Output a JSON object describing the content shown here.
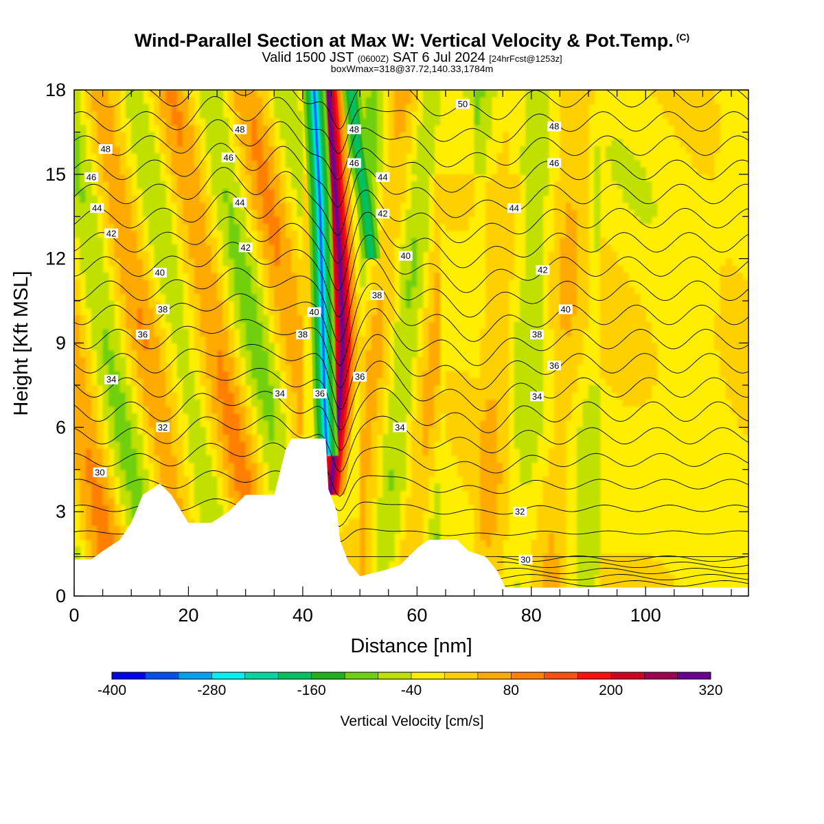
{
  "title": {
    "main": "Wind-Parallel Section at Max W: Vertical Velocity & Pot.Temp.",
    "copyright": "(C)",
    "valid_prefix": "Valid 1500 JST",
    "valid_utc": "(0600Z)",
    "valid_date": "SAT 6 Jul 2024",
    "forecast": "[24hrFcst@1253z]",
    "boxw": "boxWmax=318@37.72,140.33,1784m"
  },
  "chart_data": {
    "type": "heatmap",
    "title": "Wind-Parallel Section at Max W: Vertical Velocity & Pot.Temp.",
    "xlabel": "Distance [nm]",
    "ylabel": "Height [Kft MSL]",
    "xlim": [
      0,
      118
    ],
    "ylim": [
      0,
      18
    ],
    "x_ticks": [
      "0",
      "20",
      "40",
      "60",
      "80",
      "100"
    ],
    "y_ticks": [
      "0",
      "3",
      "6",
      "9",
      "12",
      "15",
      "18"
    ],
    "x_tick_values": [
      0,
      20,
      40,
      60,
      80,
      100
    ],
    "y_tick_values": [
      0,
      3,
      6,
      9,
      12,
      15,
      18
    ],
    "colorbar": {
      "label": "Vertical Velocity [cm/s]",
      "tick_labels": [
        "-400",
        "-280",
        "-160",
        "-40",
        "80",
        "200",
        "320"
      ],
      "tick_values": [
        -400,
        -280,
        -160,
        -40,
        80,
        200,
        320
      ],
      "bounds": [
        -400,
        320
      ],
      "colors": [
        "#0000ee",
        "#0050f0",
        "#00a0f0",
        "#00f0f0",
        "#00d8a0",
        "#00c060",
        "#20b020",
        "#70d010",
        "#c0e000",
        "#ffee00",
        "#ffd000",
        "#ffaa00",
        "#ff8000",
        "#ff5010",
        "#ff1010",
        "#d00020",
        "#a00050",
        "#6a0090"
      ]
    },
    "terrain_kft": [
      [
        0,
        1.3
      ],
      [
        3,
        1.3
      ],
      [
        5,
        1.6
      ],
      [
        8,
        2.0
      ],
      [
        10,
        2.6
      ],
      [
        12,
        3.6
      ],
      [
        15,
        4.0
      ],
      [
        17,
        3.6
      ],
      [
        20,
        2.6
      ],
      [
        24,
        2.6
      ],
      [
        27,
        3.0
      ],
      [
        30,
        3.6
      ],
      [
        35,
        3.6
      ],
      [
        37,
        5.2
      ],
      [
        38,
        5.6
      ],
      [
        44,
        5.6
      ],
      [
        44.5,
        3.8
      ],
      [
        46,
        3.0
      ],
      [
        46.5,
        2.0
      ],
      [
        48,
        1.2
      ],
      [
        50,
        0.7
      ],
      [
        54,
        0.9
      ],
      [
        57,
        1.1
      ],
      [
        60,
        1.7
      ],
      [
        62,
        2.0
      ],
      [
        67,
        2.0
      ],
      [
        69,
        1.6
      ],
      [
        72,
        1.4
      ],
      [
        74,
        0.9
      ],
      [
        75.5,
        0.3
      ],
      [
        118,
        0.3
      ]
    ],
    "updraft_core": [
      [
        44.5,
        18
      ],
      [
        45.5,
        15
      ],
      [
        46.5,
        12
      ],
      [
        47,
        9
      ],
      [
        46.5,
        7
      ],
      [
        45.5,
        5
      ],
      [
        44.8,
        3.6
      ]
    ],
    "downdraft_core": [
      [
        42,
        18
      ],
      [
        43,
        14
      ],
      [
        43.5,
        10
      ],
      [
        43.8,
        7
      ],
      [
        44.2,
        5
      ]
    ],
    "isentrope_labels": [
      {
        "text": "50",
        "x": 68,
        "y": 17.5
      },
      {
        "text": "48",
        "x": 5.5,
        "y": 15.9
      },
      {
        "text": "48",
        "x": 29,
        "y": 16.6
      },
      {
        "text": "48",
        "x": 49,
        "y": 16.6
      },
      {
        "text": "48",
        "x": 84,
        "y": 16.7
      },
      {
        "text": "46",
        "x": 3,
        "y": 14.9
      },
      {
        "text": "46",
        "x": 27,
        "y": 15.6
      },
      {
        "text": "46",
        "x": 49,
        "y": 15.4
      },
      {
        "text": "46",
        "x": 84,
        "y": 15.4
      },
      {
        "text": "44",
        "x": 4,
        "y": 13.8
      },
      {
        "text": "44",
        "x": 29,
        "y": 14.0
      },
      {
        "text": "44",
        "x": 54,
        "y": 14.9
      },
      {
        "text": "44",
        "x": 77,
        "y": 13.8
      },
      {
        "text": "42",
        "x": 6.5,
        "y": 12.9
      },
      {
        "text": "42",
        "x": 30,
        "y": 12.4
      },
      {
        "text": "42",
        "x": 54,
        "y": 13.6
      },
      {
        "text": "42",
        "x": 82,
        "y": 11.6
      },
      {
        "text": "40",
        "x": 15,
        "y": 11.5
      },
      {
        "text": "40",
        "x": 42,
        "y": 10.1
      },
      {
        "text": "40",
        "x": 58,
        "y": 12.1
      },
      {
        "text": "40",
        "x": 86,
        "y": 10.2
      },
      {
        "text": "38",
        "x": 15.5,
        "y": 10.2
      },
      {
        "text": "38",
        "x": 40,
        "y": 9.3
      },
      {
        "text": "38",
        "x": 53,
        "y": 10.7
      },
      {
        "text": "38",
        "x": 81,
        "y": 9.3
      },
      {
        "text": "36",
        "x": 12,
        "y": 9.3
      },
      {
        "text": "36",
        "x": 50,
        "y": 7.8
      },
      {
        "text": "36",
        "x": 84,
        "y": 8.2
      },
      {
        "text": "36",
        "x": 43,
        "y": 7.2
      },
      {
        "text": "34",
        "x": 6.5,
        "y": 7.7
      },
      {
        "text": "34",
        "x": 36,
        "y": 7.2
      },
      {
        "text": "34",
        "x": 57,
        "y": 6.0
      },
      {
        "text": "34",
        "x": 81,
        "y": 7.1
      },
      {
        "text": "32",
        "x": 15.5,
        "y": 6.0
      },
      {
        "text": "32",
        "x": 78,
        "y": 3.0
      },
      {
        "text": "30",
        "x": 4.5,
        "y": 4.4
      },
      {
        "text": "30",
        "x": 79,
        "y": 1.3
      }
    ]
  }
}
